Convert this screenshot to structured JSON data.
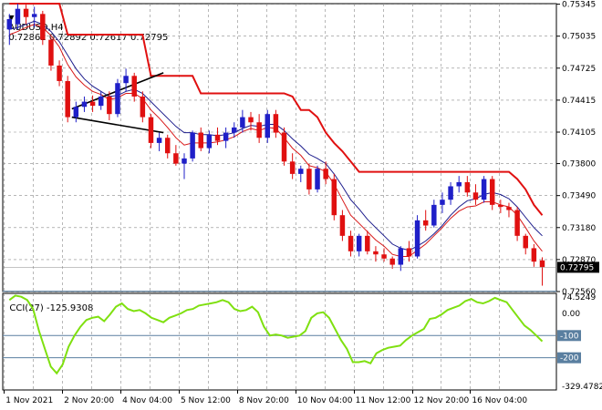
{
  "header": {
    "symbol": "AUDUSD,H4",
    "ohlc": "0.72862 0.72892 0.72617 0.72795",
    "indicator_label": "CCI(27) -125.9308"
  },
  "colors": {
    "bull_candle": "#1f1fc8",
    "bear_candle": "#e01010",
    "envelope_upper": "#e01010",
    "ma_blue": "#1c1c8c",
    "ma_red": "#d81818",
    "cci_line": "#7fe010",
    "level_line": "#5a7fa0",
    "grid": "#8a8a8a"
  },
  "chart_data": [
    {
      "type": "candlestick",
      "title": "AUDUSD,H4",
      "ylim": [
        0.7256,
        0.7535
      ],
      "y_ticks": [
        "0.75345",
        "0.75035",
        "0.74725",
        "0.74415",
        "0.74105",
        "0.73800",
        "0.73490",
        "0.73180",
        "0.72870",
        "0.72560"
      ],
      "current_price": "0.72795",
      "x_ticks": [
        "1 Nov 2021",
        "2 Nov 20:00",
        "4 Nov 04:00",
        "5 Nov 12:00",
        "8 Nov 20:00",
        "10 Nov 04:00",
        "11 Nov 12:00",
        "12 Nov 20:00",
        "16 Nov 04:00"
      ],
      "candles": [
        {
          "o": 0.751,
          "h": 0.7525,
          "l": 0.7495,
          "c": 0.752
        },
        {
          "o": 0.7515,
          "h": 0.7535,
          "l": 0.751,
          "c": 0.753
        },
        {
          "o": 0.753,
          "h": 0.7534,
          "l": 0.7515,
          "c": 0.7522
        },
        {
          "o": 0.7522,
          "h": 0.7532,
          "l": 0.7512,
          "c": 0.7525
        },
        {
          "o": 0.7525,
          "h": 0.7528,
          "l": 0.7495,
          "c": 0.75
        },
        {
          "o": 0.75,
          "h": 0.7502,
          "l": 0.747,
          "c": 0.7475
        },
        {
          "o": 0.7475,
          "h": 0.748,
          "l": 0.7455,
          "c": 0.746
        },
        {
          "o": 0.746,
          "h": 0.7465,
          "l": 0.742,
          "c": 0.7425
        },
        {
          "o": 0.7425,
          "h": 0.744,
          "l": 0.742,
          "c": 0.7435
        },
        {
          "o": 0.7435,
          "h": 0.7445,
          "l": 0.743,
          "c": 0.744
        },
        {
          "o": 0.744,
          "h": 0.7446,
          "l": 0.743,
          "c": 0.7436
        },
        {
          "o": 0.7436,
          "h": 0.745,
          "l": 0.7432,
          "c": 0.7445
        },
        {
          "o": 0.7445,
          "h": 0.745,
          "l": 0.7422,
          "c": 0.7428
        },
        {
          "o": 0.7428,
          "h": 0.7462,
          "l": 0.7425,
          "c": 0.7458
        },
        {
          "o": 0.7458,
          "h": 0.7472,
          "l": 0.745,
          "c": 0.7465
        },
        {
          "o": 0.7465,
          "h": 0.7468,
          "l": 0.744,
          "c": 0.7445
        },
        {
          "o": 0.7445,
          "h": 0.745,
          "l": 0.742,
          "c": 0.7425
        },
        {
          "o": 0.7425,
          "h": 0.7428,
          "l": 0.7395,
          "c": 0.74
        },
        {
          "o": 0.74,
          "h": 0.741,
          "l": 0.7392,
          "c": 0.7405
        },
        {
          "o": 0.7405,
          "h": 0.7408,
          "l": 0.7385,
          "c": 0.739
        },
        {
          "o": 0.739,
          "h": 0.7398,
          "l": 0.7378,
          "c": 0.738
        },
        {
          "o": 0.738,
          "h": 0.739,
          "l": 0.7365,
          "c": 0.7385
        },
        {
          "o": 0.7385,
          "h": 0.7412,
          "l": 0.7382,
          "c": 0.741
        },
        {
          "o": 0.741,
          "h": 0.7415,
          "l": 0.7392,
          "c": 0.7395
        },
        {
          "o": 0.7395,
          "h": 0.7412,
          "l": 0.739,
          "c": 0.7408
        },
        {
          "o": 0.7408,
          "h": 0.7415,
          "l": 0.7398,
          "c": 0.7402
        },
        {
          "o": 0.7402,
          "h": 0.7415,
          "l": 0.7395,
          "c": 0.741
        },
        {
          "o": 0.741,
          "h": 0.742,
          "l": 0.7405,
          "c": 0.7415
        },
        {
          "o": 0.7415,
          "h": 0.7432,
          "l": 0.741,
          "c": 0.7425
        },
        {
          "o": 0.7425,
          "h": 0.743,
          "l": 0.7412,
          "c": 0.742
        },
        {
          "o": 0.742,
          "h": 0.7428,
          "l": 0.74,
          "c": 0.7405
        },
        {
          "o": 0.7405,
          "h": 0.7432,
          "l": 0.74,
          "c": 0.7428
        },
        {
          "o": 0.7428,
          "h": 0.7432,
          "l": 0.7405,
          "c": 0.741
        },
        {
          "o": 0.741,
          "h": 0.7415,
          "l": 0.7378,
          "c": 0.7382
        },
        {
          "o": 0.7382,
          "h": 0.739,
          "l": 0.7365,
          "c": 0.737
        },
        {
          "o": 0.737,
          "h": 0.7378,
          "l": 0.7362,
          "c": 0.7375
        },
        {
          "o": 0.7375,
          "h": 0.738,
          "l": 0.735,
          "c": 0.7355
        },
        {
          "o": 0.7355,
          "h": 0.7378,
          "l": 0.7352,
          "c": 0.7375
        },
        {
          "o": 0.7375,
          "h": 0.7382,
          "l": 0.736,
          "c": 0.7365
        },
        {
          "o": 0.7365,
          "h": 0.737,
          "l": 0.7325,
          "c": 0.733
        },
        {
          "o": 0.733,
          "h": 0.7335,
          "l": 0.7305,
          "c": 0.731
        },
        {
          "o": 0.731,
          "h": 0.7315,
          "l": 0.729,
          "c": 0.7295
        },
        {
          "o": 0.7295,
          "h": 0.7312,
          "l": 0.729,
          "c": 0.731
        },
        {
          "o": 0.731,
          "h": 0.7315,
          "l": 0.7292,
          "c": 0.7295
        },
        {
          "o": 0.7295,
          "h": 0.73,
          "l": 0.7285,
          "c": 0.7292
        },
        {
          "o": 0.7292,
          "h": 0.7298,
          "l": 0.7285,
          "c": 0.7288
        },
        {
          "o": 0.7288,
          "h": 0.729,
          "l": 0.7278,
          "c": 0.7282
        },
        {
          "o": 0.7282,
          "h": 0.73,
          "l": 0.7276,
          "c": 0.7298
        },
        {
          "o": 0.7298,
          "h": 0.7305,
          "l": 0.7285,
          "c": 0.729
        },
        {
          "o": 0.729,
          "h": 0.733,
          "l": 0.7288,
          "c": 0.7325
        },
        {
          "o": 0.7325,
          "h": 0.7335,
          "l": 0.7315,
          "c": 0.732
        },
        {
          "o": 0.732,
          "h": 0.7345,
          "l": 0.7318,
          "c": 0.734
        },
        {
          "o": 0.734,
          "h": 0.7352,
          "l": 0.7332,
          "c": 0.7345
        },
        {
          "o": 0.7345,
          "h": 0.7362,
          "l": 0.734,
          "c": 0.7358
        },
        {
          "o": 0.7358,
          "h": 0.7368,
          "l": 0.7352,
          "c": 0.7362
        },
        {
          "o": 0.7362,
          "h": 0.7368,
          "l": 0.7348,
          "c": 0.7352
        },
        {
          "o": 0.7352,
          "h": 0.736,
          "l": 0.734,
          "c": 0.7345
        },
        {
          "o": 0.7345,
          "h": 0.7368,
          "l": 0.7342,
          "c": 0.7365
        },
        {
          "o": 0.7365,
          "h": 0.7368,
          "l": 0.7335,
          "c": 0.734
        },
        {
          "o": 0.734,
          "h": 0.7345,
          "l": 0.7332,
          "c": 0.7338
        },
        {
          "o": 0.7338,
          "h": 0.7342,
          "l": 0.7328,
          "c": 0.7335
        },
        {
          "o": 0.7335,
          "h": 0.7338,
          "l": 0.7305,
          "c": 0.731
        },
        {
          "o": 0.731,
          "h": 0.7312,
          "l": 0.7292,
          "c": 0.7298
        },
        {
          "o": 0.7298,
          "h": 0.7302,
          "l": 0.728,
          "c": 0.7285
        },
        {
          "o": 0.72862,
          "h": 0.72892,
          "l": 0.72617,
          "c": 0.72795
        }
      ],
      "envelope_upper": [
        0.7535,
        0.7535,
        0.7535,
        0.7535,
        0.7535,
        0.7535,
        0.7535,
        0.7505,
        0.7505,
        0.7505,
        0.7505,
        0.7505,
        0.7505,
        0.7505,
        0.7505,
        0.7505,
        0.7505,
        0.7465,
        0.7465,
        0.7465,
        0.7465,
        0.7465,
        0.7465,
        0.7448,
        0.7448,
        0.7448,
        0.7448,
        0.7448,
        0.7448,
        0.7448,
        0.7448,
        0.7448,
        0.7448,
        0.7448,
        0.7445,
        0.7432,
        0.7432,
        0.7425,
        0.741,
        0.74,
        0.7392,
        0.7382,
        0.7372,
        0.7372,
        0.7372,
        0.7372,
        0.7372,
        0.7372,
        0.7372,
        0.7372,
        0.7372,
        0.7372,
        0.7372,
        0.7372,
        0.7372,
        0.7372,
        0.7372,
        0.7372,
        0.7372,
        0.7372,
        0.7372,
        0.7365,
        0.7355,
        0.734,
        0.733
      ],
      "ma_blue": [
        0.751,
        0.7512,
        0.7515,
        0.7518,
        0.7515,
        0.7508,
        0.7498,
        0.7485,
        0.7472,
        0.7462,
        0.7455,
        0.745,
        0.7445,
        0.7446,
        0.745,
        0.7452,
        0.7448,
        0.744,
        0.7432,
        0.7424,
        0.7416,
        0.741,
        0.741,
        0.7408,
        0.7408,
        0.7407,
        0.7408,
        0.741,
        0.7414,
        0.7417,
        0.7416,
        0.7418,
        0.7418,
        0.7412,
        0.7404,
        0.7397,
        0.7389,
        0.7385,
        0.738,
        0.737,
        0.7358,
        0.7345,
        0.7336,
        0.7326,
        0.7318,
        0.731,
        0.7302,
        0.7298,
        0.7296,
        0.73,
        0.7305,
        0.7312,
        0.732,
        0.733,
        0.7338,
        0.7344,
        0.7346,
        0.735,
        0.7352,
        0.735,
        0.7346,
        0.7338,
        0.7328,
        0.7318,
        0.731
      ],
      "ma_red": [
        0.7505,
        0.7508,
        0.7512,
        0.7515,
        0.7512,
        0.7504,
        0.7493,
        0.7476,
        0.7464,
        0.7456,
        0.745,
        0.7447,
        0.7442,
        0.7444,
        0.7448,
        0.7448,
        0.7443,
        0.7432,
        0.7424,
        0.7415,
        0.7405,
        0.7398,
        0.74,
        0.74,
        0.74,
        0.7401,
        0.7403,
        0.7406,
        0.7411,
        0.7414,
        0.7412,
        0.7415,
        0.7414,
        0.7405,
        0.7395,
        0.7388,
        0.7378,
        0.7376,
        0.7372,
        0.736,
        0.7345,
        0.733,
        0.7322,
        0.7314,
        0.7306,
        0.73,
        0.7292,
        0.729,
        0.729,
        0.7296,
        0.7302,
        0.731,
        0.7318,
        0.7327,
        0.7334,
        0.7338,
        0.7339,
        0.7343,
        0.7343,
        0.734,
        0.7338,
        0.733,
        0.7318,
        0.7305,
        0.7295
      ],
      "annotation_lines": [
        {
          "x1": 7.5,
          "y1": 0.7433,
          "x2": 18.5,
          "y2": 0.7468
        },
        {
          "x1": 7.5,
          "y1": 0.7425,
          "x2": 18.5,
          "y2": 0.741
        }
      ]
    },
    {
      "type": "line",
      "title": "CCI(27) -125.9308",
      "ylim": [
        -345,
        90
      ],
      "y_ticks": [
        "74.5249",
        "0.00",
        "-100",
        "-200",
        "-329.4782"
      ],
      "levels": [
        100,
        -100,
        -200
      ],
      "values": [
        60,
        80,
        75,
        60,
        20,
        -80,
        -160,
        -240,
        -270,
        -230,
        -150,
        -100,
        -60,
        -30,
        -20,
        -15,
        -35,
        -5,
        30,
        45,
        20,
        10,
        15,
        0,
        -20,
        -30,
        -40,
        -20,
        -10,
        0,
        15,
        20,
        35,
        40,
        45,
        50,
        60,
        50,
        20,
        10,
        15,
        30,
        5,
        -60,
        -100,
        -95,
        -100,
        -110,
        -105,
        -100,
        -80,
        -20,
        0,
        5,
        -20,
        -70,
        -120,
        -160,
        -220,
        -220,
        -215,
        -225,
        -180,
        -165,
        -155,
        -150,
        -145,
        -120,
        -100,
        -85,
        -70,
        -25,
        -20,
        -5,
        15,
        25,
        35,
        55,
        65,
        50,
        45,
        55,
        70,
        60,
        50,
        15,
        -20,
        -55,
        -75,
        -100,
        -125.93
      ]
    }
  ]
}
